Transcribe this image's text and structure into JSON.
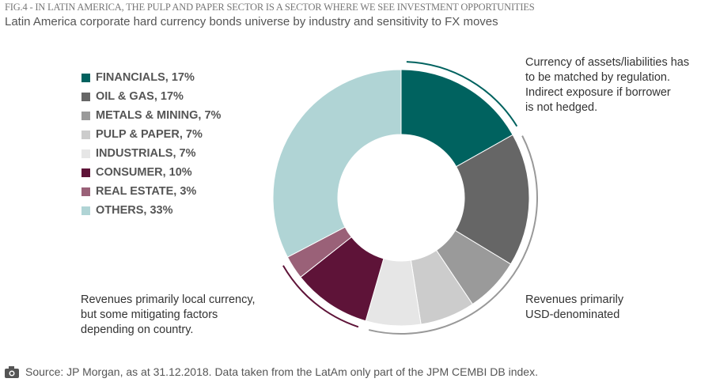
{
  "fig_title": "FIG.4 - IN LATIN AMERICA, THE PULP AND PAPER SECTOR IS A SECTOR WHERE WE SEE INVESTMENT OPPORTUNITIES",
  "chart_data": {
    "type": "pie",
    "title": "Latin America corporate hard currency bonds universe by industry and sensitivity to FX moves",
    "legend_position": "left",
    "slices": [
      {
        "label": "FINANCIALS, 17%",
        "name": "Financials",
        "value": 17,
        "color": "#00625f"
      },
      {
        "label": "OIL & GAS, 17%",
        "name": "Oil & Gas",
        "value": 17,
        "color": "#666666"
      },
      {
        "label": "METALS & MINING, 7%",
        "name": "Metals & Mining",
        "value": 7,
        "color": "#9a9a9a"
      },
      {
        "label": "PULP & PAPER, 7%",
        "name": "Pulp & Paper",
        "value": 7,
        "color": "#cccccc"
      },
      {
        "label": "INDUSTRIALS, 7%",
        "name": "Industrials",
        "value": 7,
        "color": "#e6e6e6"
      },
      {
        "label": "CONSUMER, 10%",
        "name": "Consumer",
        "value": 10,
        "color": "#5e1338"
      },
      {
        "label": "REAL ESTATE, 3%",
        "name": "Real Estate",
        "value": 3,
        "color": "#9a6178"
      },
      {
        "label": "OTHERS, 33%",
        "name": "Others",
        "value": 33,
        "color": "#b0d4d5"
      }
    ],
    "annotations": [
      {
        "text": [
          "Currency of assets/liabilities has",
          "to be matched by regulation.",
          "Indirect exposure if borrower",
          "is not hedged."
        ],
        "groups": [
          0
        ],
        "color": "#00625f"
      },
      {
        "text": [
          "Revenues primarily",
          "USD-denominated"
        ],
        "groups": [
          1,
          2,
          3,
          4
        ],
        "color": "#999999"
      },
      {
        "text": [
          "Revenues primarily local currency,",
          "but some mitigating factors",
          "depending on country."
        ],
        "groups": [
          5,
          6
        ],
        "color": "#5e1338"
      }
    ]
  },
  "source": "Source: JP Morgan, as at 31.12.2018. Data taken from the LatAm only part of the JPM CEMBI DB index.",
  "source_icon": "camera-icon"
}
